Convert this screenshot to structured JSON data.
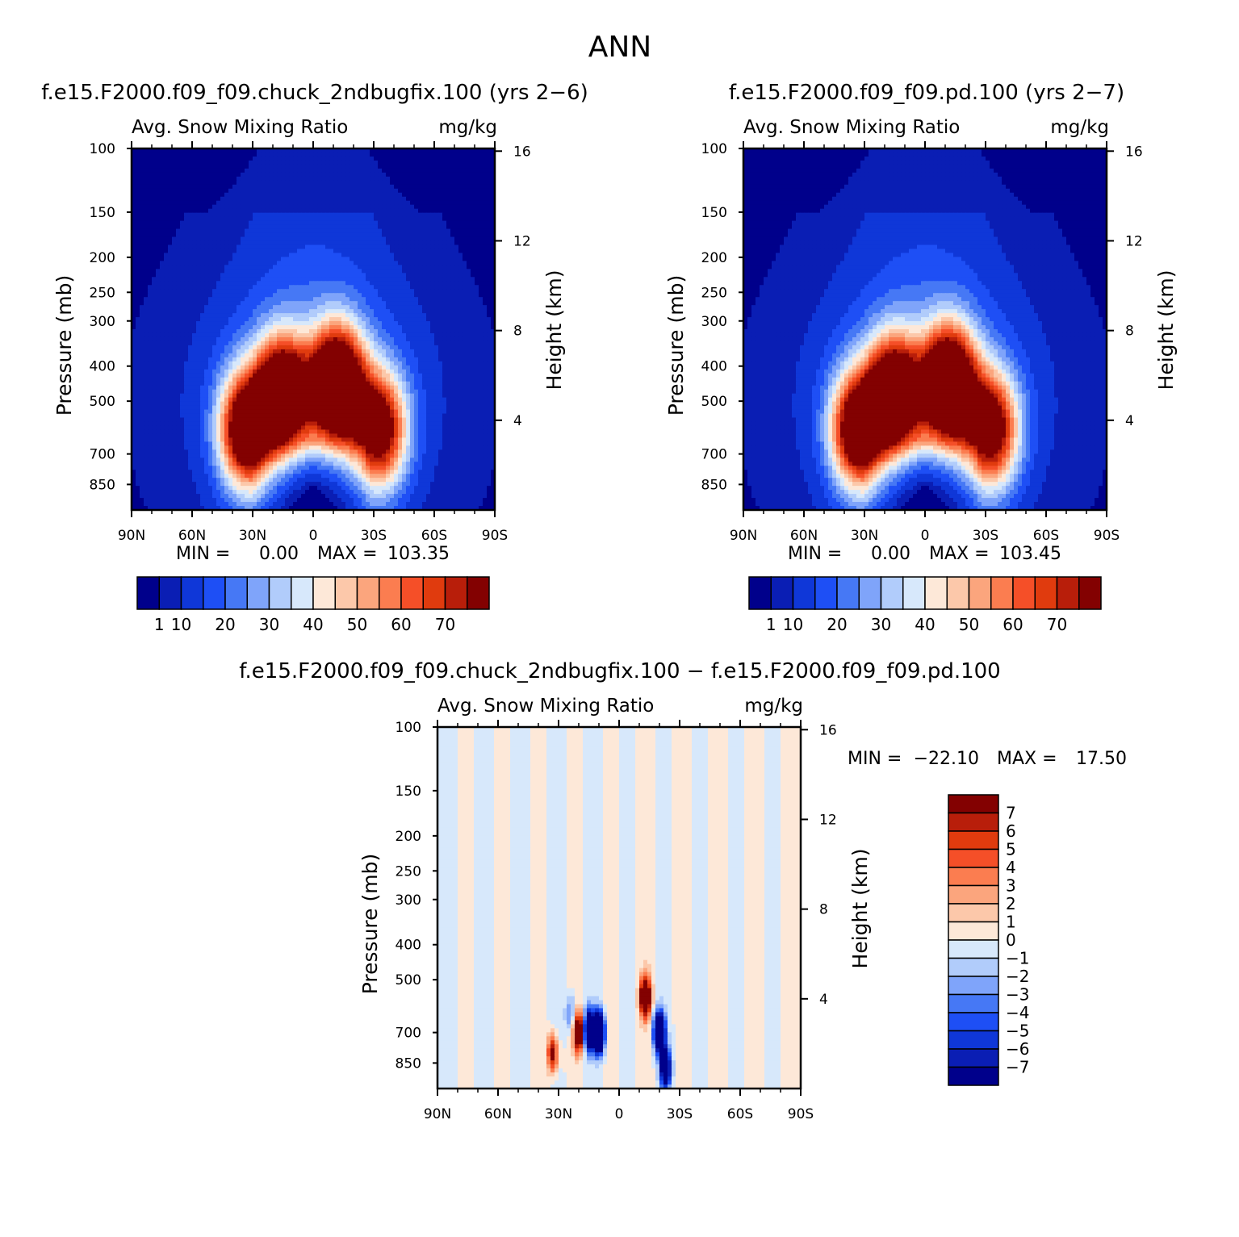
{
  "figure_title": "ANN",
  "chart_data": [
    {
      "type": "heatmap",
      "title": "f.e15.F2000.f09_f09.chuck_2ndbugfix.100 (yrs 2−6)",
      "subtitle_left": "Avg. Snow Mixing Ratio",
      "subtitle_right": "mg/kg",
      "ylabel": "Pressure (mb)",
      "ylabel_right": "Height (km)",
      "x_ticks": [
        "90N",
        "60N",
        "30N",
        "0",
        "30S",
        "60S",
        "90S"
      ],
      "y_ticks": [
        "100",
        "150",
        "200",
        "250",
        "300",
        "400",
        "500",
        "700",
        "850"
      ],
      "y_right_ticks": [
        "16",
        "12",
        "8",
        "4"
      ],
      "ylim": [
        1000,
        100
      ],
      "y_scale": "log",
      "stats": {
        "min_label": "MIN =",
        "min": "0.00",
        "max_label": "MAX =",
        "max": "103.35"
      },
      "colorbar_labels": [
        "1",
        "10",
        "20",
        "30",
        "40",
        "50",
        "60",
        "70"
      ],
      "colors": [
        "#00008b",
        "#0a1eb4",
        "#0f37d8",
        "#1e4ff5",
        "#4678f5",
        "#7fa4fa",
        "#b1ccfb",
        "#d7e8fb",
        "#fde8d8",
        "#fcc8aa",
        "#fba57d",
        "#fb7d50",
        "#f54f28",
        "#e03b0e",
        "#b81e0a",
        "#830101"
      ],
      "peaks": [
        {
          "lat": -12,
          "p": 450,
          "value": 100
        },
        {
          "lat": 15,
          "p": 480,
          "value": 90
        },
        {
          "lat": 33,
          "p": 600,
          "value": 85
        },
        {
          "lat": -33,
          "p": 600,
          "value": 72
        }
      ]
    },
    {
      "type": "heatmap",
      "title": "f.e15.F2000.f09_f09.pd.100 (yrs 2−7)",
      "subtitle_left": "Avg. Snow Mixing Ratio",
      "subtitle_right": "mg/kg",
      "ylabel": "Pressure (mb)",
      "ylabel_right": "Height (km)",
      "x_ticks": [
        "90N",
        "60N",
        "30N",
        "0",
        "30S",
        "60S",
        "90S"
      ],
      "y_ticks": [
        "100",
        "150",
        "200",
        "250",
        "300",
        "400",
        "500",
        "700",
        "850"
      ],
      "y_right_ticks": [
        "16",
        "12",
        "8",
        "4"
      ],
      "ylim": [
        1000,
        100
      ],
      "y_scale": "log",
      "stats": {
        "min_label": "MIN =",
        "min": "0.00",
        "max_label": "MAX =",
        "max": "103.45"
      },
      "colorbar_labels": [
        "1",
        "10",
        "20",
        "30",
        "40",
        "50",
        "60",
        "70"
      ],
      "colors": [
        "#00008b",
        "#0a1eb4",
        "#0f37d8",
        "#1e4ff5",
        "#4678f5",
        "#7fa4fa",
        "#b1ccfb",
        "#d7e8fb",
        "#fde8d8",
        "#fcc8aa",
        "#fba57d",
        "#fb7d50",
        "#f54f28",
        "#e03b0e",
        "#b81e0a",
        "#830101"
      ],
      "peaks": [
        {
          "lat": -12,
          "p": 450,
          "value": 100
        },
        {
          "lat": 15,
          "p": 480,
          "value": 90
        },
        {
          "lat": 33,
          "p": 600,
          "value": 85
        },
        {
          "lat": -33,
          "p": 600,
          "value": 72
        }
      ]
    },
    {
      "type": "heatmap",
      "title": "f.e15.F2000.f09_f09.chuck_2ndbugfix.100 − f.e15.F2000.f09_f09.pd.100",
      "subtitle_left": "Avg. Snow Mixing Ratio",
      "subtitle_right": "mg/kg",
      "ylabel": "Pressure (mb)",
      "ylabel_right": "Height (km)",
      "x_ticks": [
        "90N",
        "60N",
        "30N",
        "0",
        "30S",
        "60S",
        "90S"
      ],
      "y_ticks": [
        "100",
        "150",
        "200",
        "250",
        "300",
        "400",
        "500",
        "700",
        "850"
      ],
      "y_right_ticks": [
        "16",
        "12",
        "8",
        "4"
      ],
      "ylim": [
        1000,
        100
      ],
      "y_scale": "log",
      "stats": {
        "min_label": "MIN =",
        "min": "−22.10",
        "max_label": "MAX =",
        "max": "17.50"
      },
      "colorbar_labels": [
        "7",
        "6",
        "5",
        "4",
        "3",
        "2",
        "1",
        "0",
        "−1",
        "−2",
        "−3",
        "−4",
        "−5",
        "−6",
        "−7"
      ],
      "colors": [
        "#830101",
        "#b81e0a",
        "#e03b0e",
        "#f54f28",
        "#fb7d50",
        "#fba57d",
        "#fcc8aa",
        "#fde8d8",
        "#d7e8fb",
        "#b1ccfb",
        "#7fa4fa",
        "#4678f5",
        "#1e4ff5",
        "#0f37d8",
        "#0a1eb4",
        "#00008b"
      ],
      "anomalies": [
        {
          "lat": 20,
          "p": 700,
          "value": 12
        },
        {
          "lat": 15,
          "p": 690,
          "value": -15
        },
        {
          "lat": 10,
          "p": 700,
          "value": -20
        },
        {
          "lat": 24,
          "p": 620,
          "value": -4
        },
        {
          "lat": -13,
          "p": 560,
          "value": 14
        },
        {
          "lat": -20,
          "p": 700,
          "value": -18
        },
        {
          "lat": -23,
          "p": 880,
          "value": -12
        },
        {
          "lat": 33,
          "p": 800,
          "value": 8
        }
      ]
    }
  ]
}
